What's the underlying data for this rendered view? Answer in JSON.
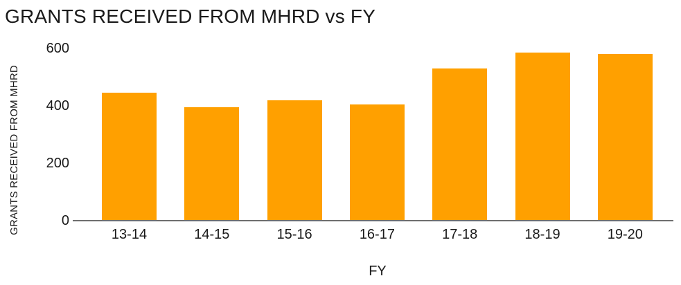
{
  "chart_data": {
    "type": "bar",
    "title": "GRANTS RECEIVED FROM MHRD vs FY",
    "xlabel": "FY",
    "ylabel": "GRANTS RECEIVED FROM MHRD",
    "categories": [
      "13-14",
      "14-15",
      "15-16",
      "16-17",
      "17-18",
      "18-19",
      "19-20"
    ],
    "values": [
      445,
      395,
      420,
      405,
      530,
      585,
      580
    ],
    "yticks": [
      0,
      200,
      400,
      600
    ],
    "ylim": [
      0,
      600
    ],
    "bar_color": "#FFA000",
    "axis_line_color": "#6E6E6E",
    "text_color": "#1A1A1A",
    "grid": false,
    "legend": false,
    "layout_hint": "vertical bars, y-axis labels left, x labels below baseline"
  }
}
